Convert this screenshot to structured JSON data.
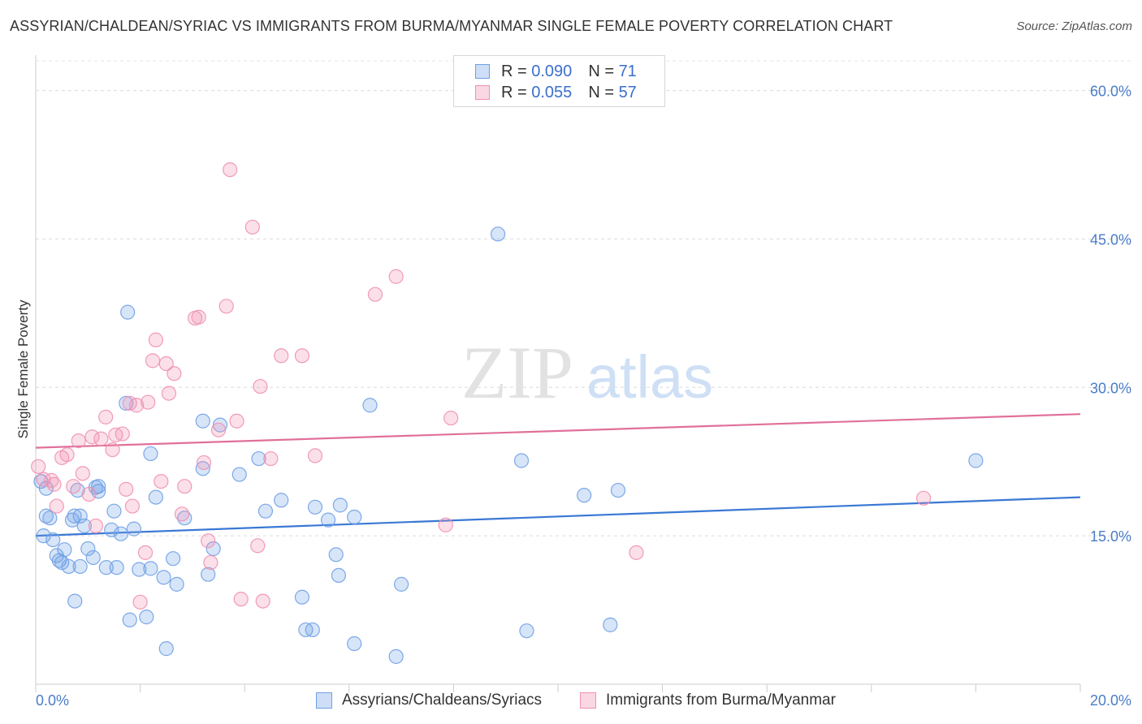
{
  "title": "ASSYRIAN/CHALDEAN/SYRIAC VS IMMIGRANTS FROM BURMA/MYANMAR SINGLE FEMALE POVERTY CORRELATION CHART",
  "source": "Source: ZipAtlas.com",
  "watermark": {
    "zip": "ZIP",
    "atlas": "atlas"
  },
  "legend": {
    "rows": [
      {
        "r_label": "R =",
        "r_value": "0.090",
        "n_label": "N =",
        "n_value": "71",
        "color": "#6fa0e6"
      },
      {
        "r_label": "R =",
        "r_value": "0.055",
        "n_label": "N =",
        "n_value": "57",
        "color": "#f090b0"
      }
    ]
  },
  "bottom_legend": [
    {
      "label": "Assyrians/Chaldeans/Syriacs",
      "color": "#6fa0e6"
    },
    {
      "label": "Immigrants from Burma/Myanmar",
      "color": "#f090b0"
    }
  ],
  "chart_data": {
    "type": "scatter",
    "title": "ASSYRIAN/CHALDEAN/SYRIAC VS IMMIGRANTS FROM BURMA/MYANMAR SINGLE FEMALE POVERTY CORRELATION CHART",
    "xlabel": "",
    "ylabel": "Single Female Poverty",
    "xlim": [
      0,
      20
    ],
    "ylim": [
      0,
      63
    ],
    "x_tick_labels": [
      "0.0%",
      "20.0%"
    ],
    "y_ticks": [
      15,
      30,
      45,
      60
    ],
    "y_tick_labels": [
      "15.0%",
      "30.0%",
      "45.0%",
      "60.0%"
    ],
    "grid": true,
    "legend_position": "top-center",
    "series": [
      {
        "name": "Assyrians/Chaldeans/Syriacs",
        "color": "#6fa0e6",
        "trend": {
          "x": [
            0,
            20
          ],
          "y": [
            15.0,
            18.9
          ]
        },
        "points": [
          [
            0.1,
            20.5
          ],
          [
            0.2,
            17.0
          ],
          [
            0.27,
            16.8
          ],
          [
            0.15,
            15.0
          ],
          [
            0.33,
            14.6
          ],
          [
            0.4,
            13.0
          ],
          [
            0.45,
            12.5
          ],
          [
            0.55,
            13.6
          ],
          [
            0.5,
            12.3
          ],
          [
            0.63,
            11.9
          ],
          [
            0.7,
            16.6
          ],
          [
            0.74,
            17.0
          ],
          [
            0.85,
            17.0
          ],
          [
            0.75,
            8.4
          ],
          [
            0.85,
            11.9
          ],
          [
            0.93,
            16.0
          ],
          [
            1.0,
            13.7
          ],
          [
            1.1,
            12.8
          ],
          [
            1.15,
            19.9
          ],
          [
            1.2,
            20.0
          ],
          [
            1.2,
            19.5
          ],
          [
            1.35,
            11.8
          ],
          [
            1.45,
            15.6
          ],
          [
            1.5,
            17.5
          ],
          [
            1.55,
            11.8
          ],
          [
            1.63,
            15.2
          ],
          [
            1.73,
            28.4
          ],
          [
            1.76,
            37.6
          ],
          [
            1.8,
            6.5
          ],
          [
            1.88,
            15.7
          ],
          [
            1.98,
            11.6
          ],
          [
            2.12,
            6.8
          ],
          [
            2.2,
            23.3
          ],
          [
            2.2,
            11.7
          ],
          [
            2.3,
            18.9
          ],
          [
            2.45,
            10.8
          ],
          [
            2.5,
            3.6
          ],
          [
            2.63,
            12.7
          ],
          [
            2.7,
            10.1
          ],
          [
            2.85,
            16.8
          ],
          [
            3.2,
            26.6
          ],
          [
            3.2,
            21.8
          ],
          [
            3.3,
            11.1
          ],
          [
            3.4,
            13.7
          ],
          [
            3.53,
            26.2
          ],
          [
            3.9,
            21.2
          ],
          [
            4.27,
            22.8
          ],
          [
            4.4,
            17.5
          ],
          [
            4.7,
            18.6
          ],
          [
            5.1,
            8.8
          ],
          [
            5.17,
            5.5
          ],
          [
            5.3,
            5.5
          ],
          [
            5.35,
            17.9
          ],
          [
            5.6,
            16.6
          ],
          [
            5.75,
            13.1
          ],
          [
            5.8,
            11.0
          ],
          [
            5.83,
            18.1
          ],
          [
            6.1,
            16.9
          ],
          [
            6.1,
            4.1
          ],
          [
            6.4,
            28.2
          ],
          [
            6.9,
            2.8
          ],
          [
            7.0,
            10.1
          ],
          [
            8.85,
            45.5
          ],
          [
            9.3,
            22.6
          ],
          [
            9.4,
            5.4
          ],
          [
            10.5,
            19.1
          ],
          [
            11.0,
            6.0
          ],
          [
            11.15,
            19.6
          ],
          [
            18.0,
            22.6
          ],
          [
            0.2,
            19.8
          ],
          [
            0.8,
            19.6
          ]
        ]
      },
      {
        "name": "Immigrants from Burma/Myanmar",
        "color": "#f090b0",
        "trend": {
          "x": [
            0,
            20
          ],
          "y": [
            23.9,
            27.3
          ]
        },
        "points": [
          [
            0.05,
            22.0
          ],
          [
            0.15,
            20.7
          ],
          [
            0.3,
            20.6
          ],
          [
            0.35,
            20.2
          ],
          [
            0.4,
            18.0
          ],
          [
            0.5,
            22.9
          ],
          [
            0.6,
            23.2
          ],
          [
            0.72,
            20.0
          ],
          [
            0.82,
            24.6
          ],
          [
            0.9,
            21.3
          ],
          [
            1.02,
            19.2
          ],
          [
            1.08,
            25.0
          ],
          [
            1.15,
            16.0
          ],
          [
            1.25,
            24.8
          ],
          [
            1.34,
            27.0
          ],
          [
            1.47,
            23.7
          ],
          [
            1.53,
            25.2
          ],
          [
            1.66,
            25.3
          ],
          [
            1.73,
            19.7
          ],
          [
            1.8,
            28.4
          ],
          [
            1.85,
            18.0
          ],
          [
            1.93,
            28.2
          ],
          [
            2.0,
            8.3
          ],
          [
            2.1,
            13.3
          ],
          [
            2.15,
            28.5
          ],
          [
            2.24,
            32.7
          ],
          [
            2.3,
            34.8
          ],
          [
            2.4,
            20.5
          ],
          [
            2.5,
            32.4
          ],
          [
            2.55,
            29.4
          ],
          [
            2.65,
            31.4
          ],
          [
            2.8,
            17.2
          ],
          [
            2.85,
            20.0
          ],
          [
            3.05,
            37.0
          ],
          [
            3.12,
            37.1
          ],
          [
            3.22,
            22.4
          ],
          [
            3.3,
            14.5
          ],
          [
            3.35,
            12.3
          ],
          [
            3.5,
            25.7
          ],
          [
            3.65,
            38.2
          ],
          [
            3.72,
            52.0
          ],
          [
            3.85,
            26.6
          ],
          [
            3.93,
            8.6
          ],
          [
            4.15,
            46.2
          ],
          [
            4.25,
            14.0
          ],
          [
            4.3,
            30.1
          ],
          [
            4.35,
            8.4
          ],
          [
            4.5,
            22.8
          ],
          [
            4.7,
            33.2
          ],
          [
            5.1,
            33.2
          ],
          [
            5.35,
            23.1
          ],
          [
            6.5,
            39.4
          ],
          [
            6.9,
            41.2
          ],
          [
            7.85,
            16.1
          ],
          [
            7.95,
            26.9
          ],
          [
            11.5,
            13.3
          ],
          [
            17.0,
            18.8
          ]
        ]
      }
    ]
  }
}
